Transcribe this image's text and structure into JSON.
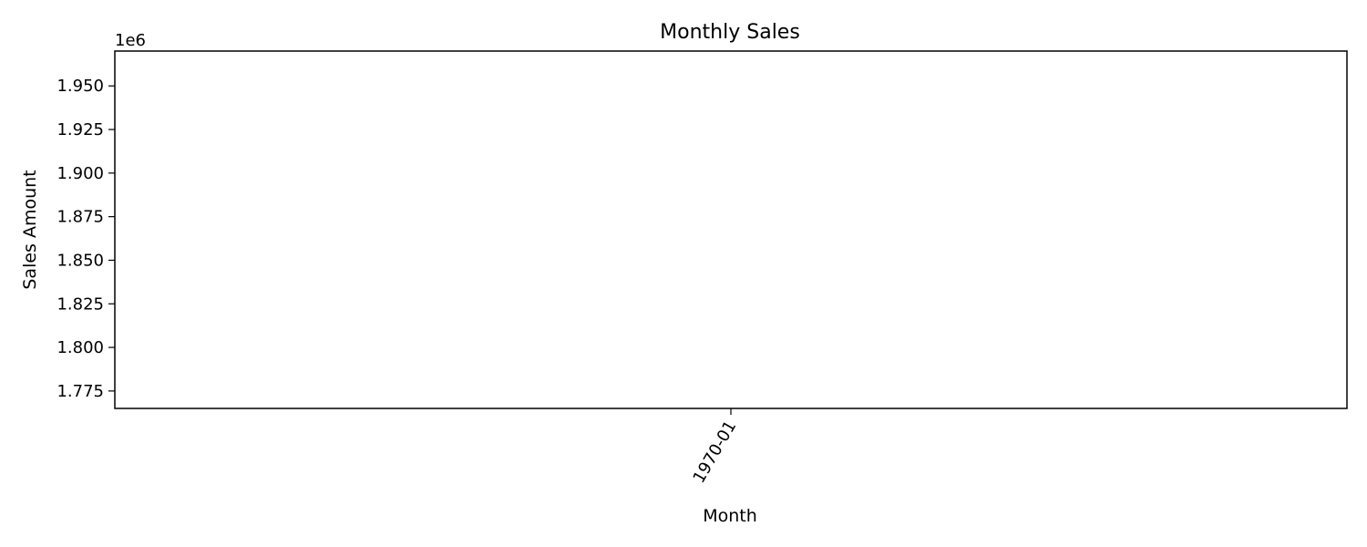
{
  "chart_data": {
    "type": "line",
    "title": "Monthly Sales",
    "xlabel": "Month",
    "ylabel": "Sales Amount",
    "y_offset_label": "1e6",
    "x_tick_labels": [
      "1970-01"
    ],
    "y_tick_values": [
      1775000,
      1800000,
      1825000,
      1850000,
      1875000,
      1900000,
      1925000,
      1950000
    ],
    "y_tick_labels": [
      "1.775",
      "1.800",
      "1.825",
      "1.850",
      "1.875",
      "1.900",
      "1.925",
      "1.950"
    ],
    "ylim": [
      1765000,
      1970000
    ],
    "grid": false,
    "series": []
  }
}
